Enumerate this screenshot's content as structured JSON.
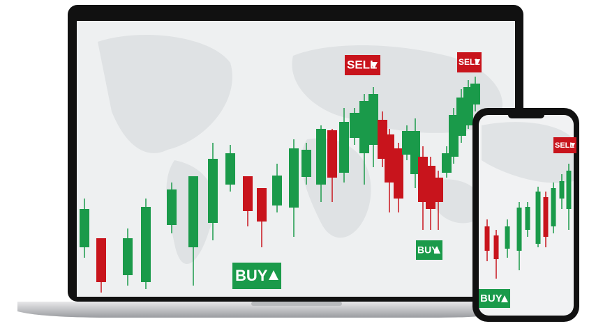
{
  "laptop": {
    "signals": [
      {
        "label": "SELL"
      },
      {
        "label": "SELL"
      },
      {
        "label": "BUY"
      },
      {
        "label": "BUY"
      }
    ]
  },
  "phone": {
    "signals": [
      {
        "label": "SELL"
      },
      {
        "label": "BUY"
      }
    ]
  }
}
